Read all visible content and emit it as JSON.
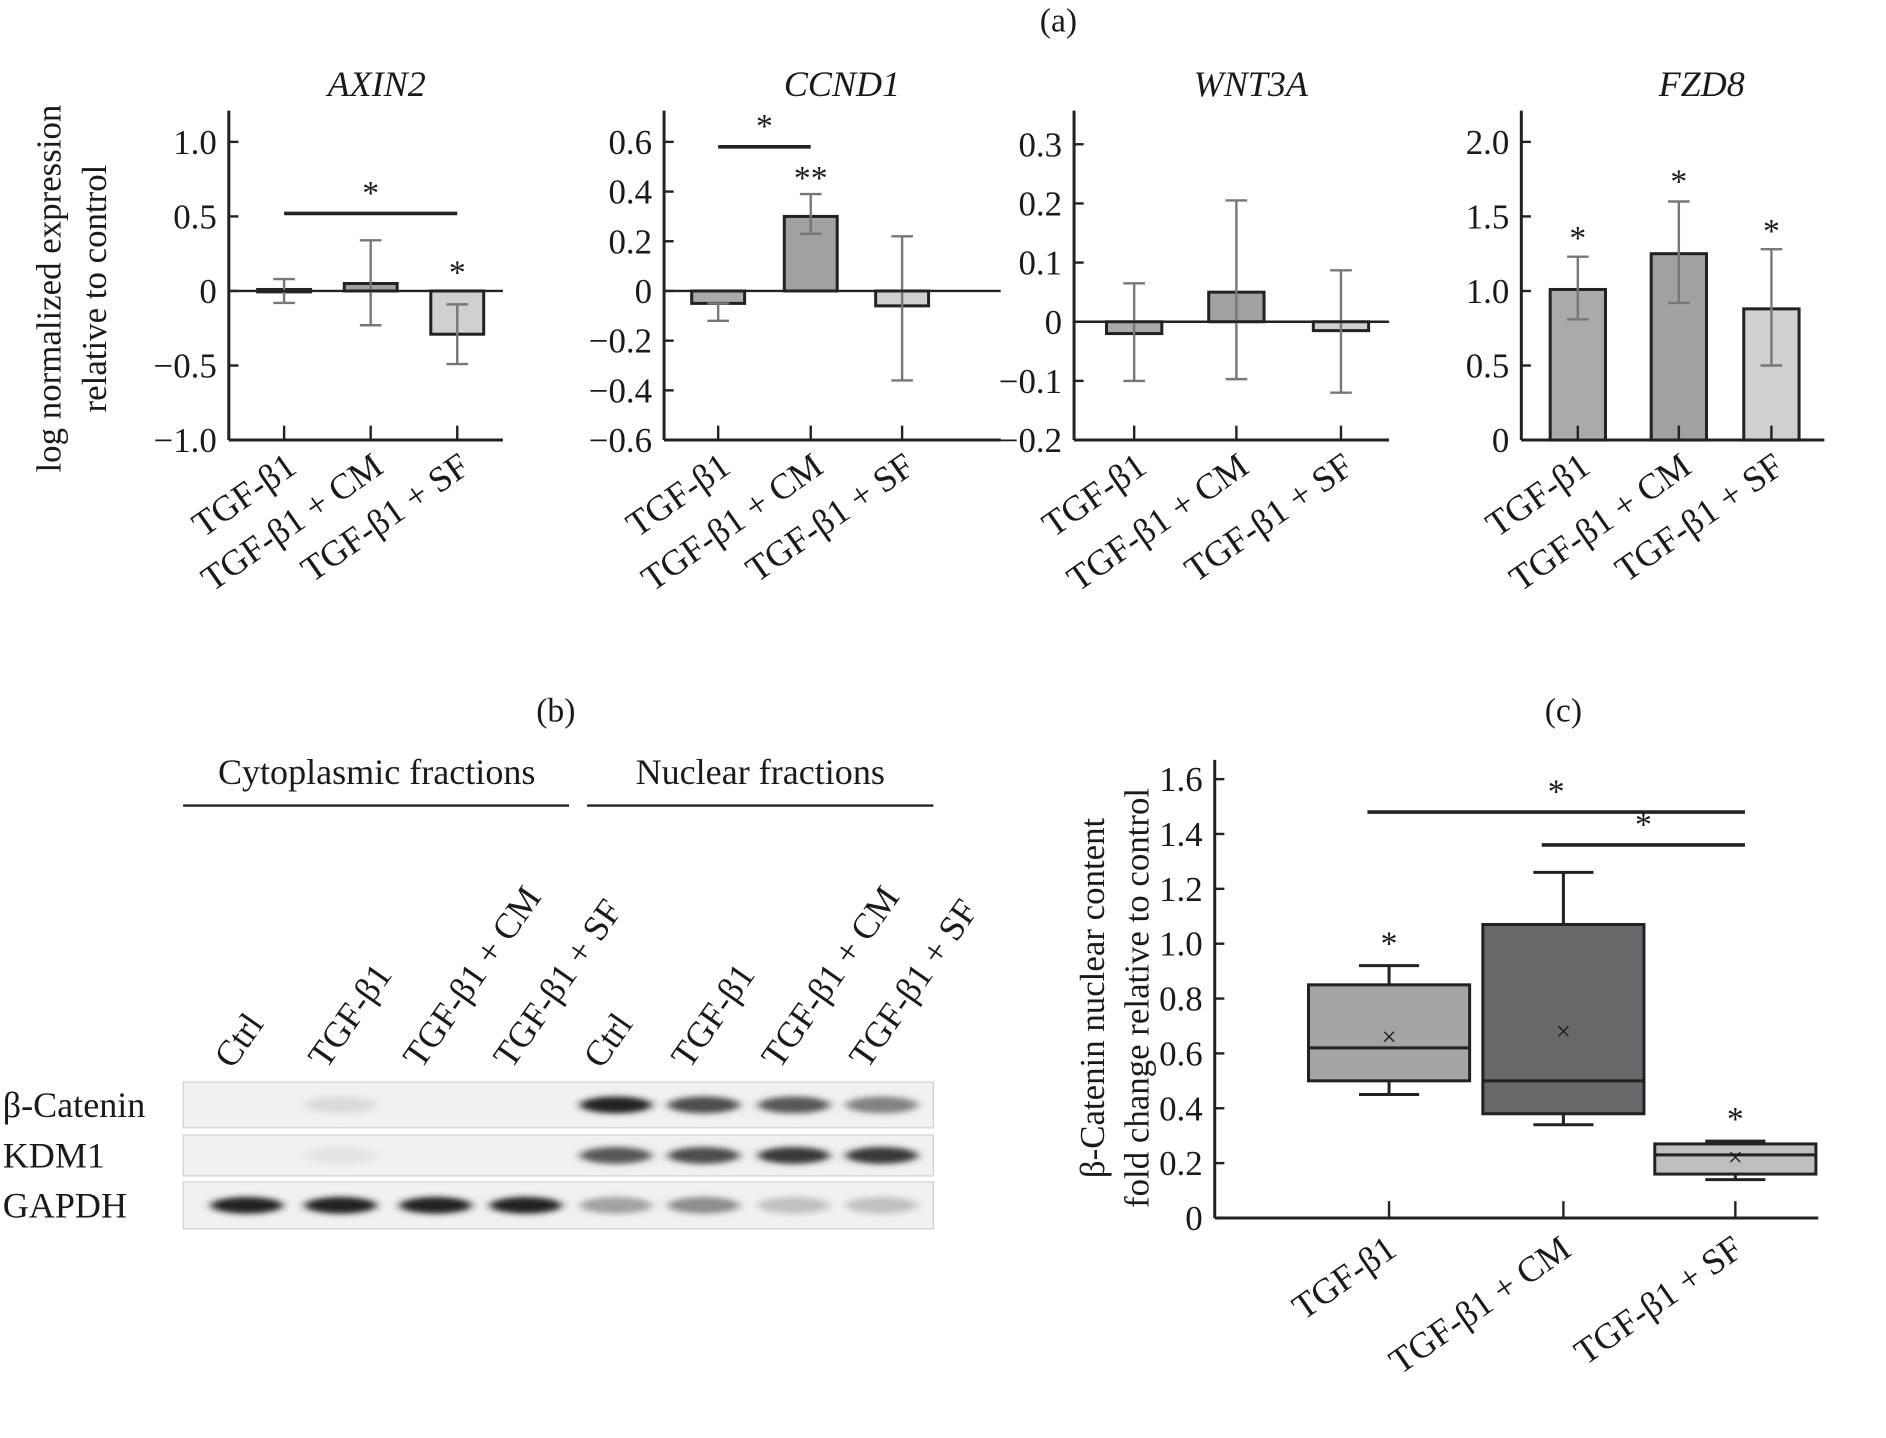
{
  "panel_labels": {
    "a": "(a)",
    "b": "(b)",
    "c": "(c)"
  },
  "chart_data": [
    {
      "id": "axin2",
      "type": "bar",
      "title": "AXIN2",
      "ylabel": [
        "log normalized expression",
        "relative to control"
      ],
      "categories": [
        "TGF-β1",
        "TGF-β1 + CM",
        "TGF-β1 + SF"
      ],
      "values": [
        0.01,
        0.05,
        -0.29
      ],
      "errors": [
        [
          -0.08,
          0.08
        ],
        [
          -0.23,
          0.34
        ],
        [
          -0.49,
          -0.09
        ]
      ],
      "ylim": [
        -1.0,
        1.2
      ],
      "yticks": [
        -1.0,
        -0.5,
        0,
        0.5,
        1.0
      ],
      "yticklabels": [
        "−1.0",
        "−0.5",
        "0",
        "0.5",
        "1.0"
      ],
      "bar_colors": [
        "#a9aaac",
        "#a0a1a3",
        "#cfd0d1"
      ],
      "annotations": [
        {
          "text": "*",
          "type": "bracket",
          "from": 0,
          "to": 2,
          "y": 0.52
        },
        {
          "text": "*",
          "type": "bar",
          "bar": 2,
          "y": 0.05
        }
      ]
    },
    {
      "id": "ccnd1",
      "type": "bar",
      "title": "CCND1",
      "categories": [
        "TGF-β1",
        "TGF-β1 + CM",
        "TGF-β1 + SF"
      ],
      "values": [
        -0.05,
        0.3,
        -0.06
      ],
      "errors": [
        [
          -0.12,
          -0.05
        ],
        [
          0.23,
          0.39
        ],
        [
          -0.36,
          0.22
        ]
      ],
      "ylim": [
        -0.6,
        0.72
      ],
      "yticks": [
        -0.6,
        -0.4,
        -0.2,
        0,
        0.2,
        0.4,
        0.6
      ],
      "yticklabels": [
        "−0.6",
        "−0.4",
        "−0.2",
        "0",
        "0.2",
        "0.4",
        "0.6"
      ],
      "bar_colors": [
        "#a9aaac",
        "#a0a1a3",
        "#cfd0d1"
      ],
      "annotations": [
        {
          "text": "*",
          "type": "bracket",
          "from": 0,
          "to": 1,
          "y": 0.58
        },
        {
          "text": "**",
          "type": "bar",
          "bar": 1,
          "y": 0.41
        }
      ]
    },
    {
      "id": "wnt3a",
      "type": "bar",
      "title": "WNT3A",
      "categories": [
        "TGF-β1",
        "TGF-β1 + CM",
        "TGF-β1 + SF"
      ],
      "values": [
        -0.02,
        0.05,
        -0.015
      ],
      "errors": [
        [
          -0.1,
          0.065
        ],
        [
          -0.097,
          0.205
        ],
        [
          -0.12,
          0.087
        ]
      ],
      "ylim": [
        -0.2,
        0.36
      ],
      "yticks": [
        -0.2,
        -0.1,
        0,
        0.1,
        0.2,
        0.3
      ],
      "yticklabels": [
        "−0.2",
        "−0.1",
        "0",
        "0.1",
        "0.2",
        "0.3"
      ],
      "bar_colors": [
        "#a9aaac",
        "#a0a1a3",
        "#cfd0d1"
      ],
      "annotations": []
    },
    {
      "id": "fzd8",
      "type": "bar",
      "title": "FZD8",
      "categories": [
        "TGF-β1",
        "TGF-β1 + CM",
        "TGF-β1 + SF"
      ],
      "values": [
        1.01,
        1.25,
        0.88
      ],
      "errors": [
        [
          0.81,
          1.23
        ],
        [
          0.92,
          1.6
        ],
        [
          0.5,
          1.28
        ]
      ],
      "ylim": [
        0,
        2.2
      ],
      "yticks": [
        0,
        0.5,
        1.0,
        1.5,
        2.0
      ],
      "yticklabels": [
        "0",
        "0.5",
        "1.0",
        "1.5",
        "2.0"
      ],
      "bar_colors": [
        "#a9aaac",
        "#a0a1a3",
        "#cfd0d1"
      ],
      "annotations": [
        {
          "text": "*",
          "type": "bar",
          "bar": 0,
          "y": 1.28
        },
        {
          "text": "*",
          "type": "bar",
          "bar": 1,
          "y": 1.66
        },
        {
          "text": "*",
          "type": "bar",
          "bar": 2,
          "y": 1.33
        }
      ]
    },
    {
      "id": "beta-catenin",
      "type": "box",
      "ylabel": [
        "β-Catenin nuclear content",
        "fold change relative to control"
      ],
      "categories": [
        "TGF-β1",
        "TGF-β1 + CM",
        "TGF-β1 + SF"
      ],
      "boxes": [
        {
          "min": 0.45,
          "q1": 0.5,
          "median": 0.62,
          "q3": 0.85,
          "max": 0.92,
          "mean": 0.66,
          "color": "#a3a4a6"
        },
        {
          "min": 0.34,
          "q1": 0.38,
          "median": 0.5,
          "q3": 1.07,
          "max": 1.26,
          "mean": 0.68,
          "color": "#67686b"
        },
        {
          "min": 0.14,
          "q1": 0.16,
          "median": 0.23,
          "q3": 0.27,
          "max": 0.28,
          "mean": 0.22,
          "color": "#bebfc1"
        }
      ],
      "ylim": [
        0,
        1.6
      ],
      "yticks": [
        0,
        0.2,
        0.4,
        0.6,
        0.8,
        1.0,
        1.2,
        1.4,
        1.6
      ],
      "yticklabels": [
        "0",
        "0.2",
        "0.4",
        "0.6",
        "0.8",
        "1.0",
        "1.2",
        "1.4",
        "1.6"
      ],
      "mean_marker": "×",
      "annotations": [
        {
          "text": "*",
          "type": "bracket",
          "from": 0,
          "to": 2,
          "y": 1.48
        },
        {
          "text": "*",
          "type": "bracket",
          "from": 1,
          "to": 2,
          "y": 1.36
        },
        {
          "text": "*",
          "type": "bar",
          "bar": 0,
          "y": 0.96
        },
        {
          "text": "*",
          "type": "bar",
          "bar": 2,
          "y": 0.32
        }
      ]
    }
  ],
  "western_blot": {
    "groups": [
      "Cytoplasmic fractions",
      "Nuclear fractions"
    ],
    "lanes": [
      "Ctrl",
      "TGF-β1",
      "TGF-β1 + CM",
      "TGF-β1 + SF",
      "Ctrl",
      "TGF-β1",
      "TGF-β1 + CM",
      "TGF-β1 + SF"
    ],
    "rows": [
      {
        "label": "β-Catenin",
        "intensity": [
          0,
          0.08,
          0,
          0,
          0.95,
          0.75,
          0.7,
          0.5
        ]
      },
      {
        "label": "KDM1",
        "intensity": [
          0,
          0.04,
          0,
          0,
          0.7,
          0.75,
          0.85,
          0.85
        ]
      },
      {
        "label": "GAPDH",
        "intensity": [
          0.95,
          0.95,
          0.95,
          0.95,
          0.35,
          0.45,
          0.2,
          0.2
        ]
      }
    ]
  }
}
